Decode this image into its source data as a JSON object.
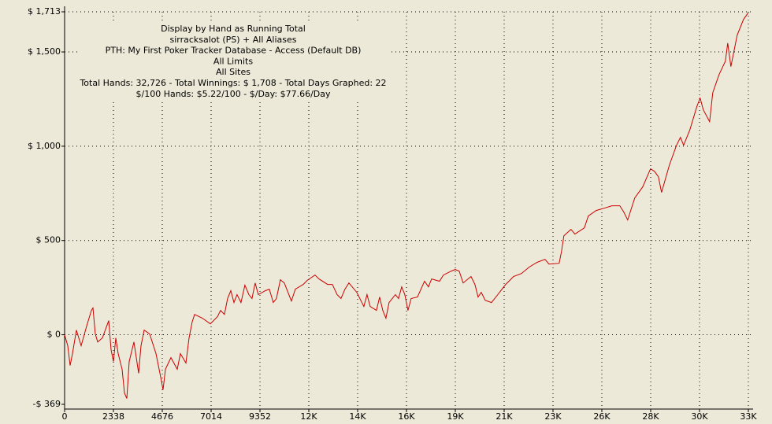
{
  "chart_data": {
    "type": "line",
    "title_lines": [
      "Display by Hand as Running Total",
      "sirracksalot (PS) + All Aliases",
      "PTH: My First Poker Tracker Database - Access (Default DB)",
      "All Limits",
      "All Sites",
      "Total Hands: 32,726 - Total Winnings: $ 1,708 - Total Days Graphed: 22",
      "$/100 Hands: $5.22/100 - $/Day: $77.66/Day"
    ],
    "color": "#cc0000",
    "grid": true,
    "xlim": [
      0,
      32732
    ],
    "ylim": [
      -369,
      1713
    ],
    "xticks": [
      0,
      2338,
      4676,
      7014,
      9352,
      {
        "value": 11690,
        "label": "12K"
      },
      {
        "value": 14028,
        "label": "14K"
      },
      {
        "value": 16366,
        "label": "16K"
      },
      {
        "value": 18704,
        "label": "19K"
      },
      {
        "value": 21042,
        "label": "21K"
      },
      {
        "value": 23380,
        "label": "23K"
      },
      {
        "value": 25718,
        "label": "26K"
      },
      {
        "value": 28056,
        "label": "28K"
      },
      {
        "value": 30394,
        "label": "30K"
      },
      {
        "value": 32732,
        "label": "33K"
      }
    ],
    "yticks": [
      {
        "value": -369,
        "label": "-$ 369"
      },
      {
        "value": 0,
        "label": "$ 0"
      },
      {
        "value": 500,
        "label": "$ 500"
      },
      {
        "value": 1000,
        "label": "$ 1,000"
      },
      {
        "value": 1500,
        "label": "$ 1,500"
      },
      {
        "value": 1713,
        "label": "$ 1,713"
      }
    ],
    "x": [
      0,
      151,
      264,
      377,
      566,
      792,
      1056,
      1282,
      1357,
      1470,
      1583,
      1810,
      2111,
      2224,
      2337,
      2451,
      2564,
      2752,
      2865,
      2978,
      3091,
      3318,
      3544,
      3657,
      3808,
      4072,
      4373,
      4599,
      4713,
      4826,
      5090,
      5391,
      5542,
      5806,
      5957,
      6107,
      6221,
      6598,
      6975,
      7314,
      7465,
      7653,
      7804,
      7955,
      8106,
      8256,
      8445,
      8633,
      8822,
      8973,
      9123,
      9274,
      9614,
      9802,
      9991,
      10141,
      10330,
      10519,
      10858,
      11046,
      11423,
      11612,
      11989,
      12177,
      12592,
      12818,
      13044,
      13233,
      13421,
      13610,
      13987,
      14175,
      14326,
      14477,
      14628,
      14929,
      15080,
      15231,
      15382,
      15532,
      15834,
      15985,
      16136,
      16286,
      16437,
      16588,
      16890,
      17229,
      17417,
      17568,
      17945,
      18134,
      18511,
      18699,
      18888,
      19076,
      19453,
      19642,
      19793,
      19943,
      20132,
      20433,
      20735,
      21112,
      21489,
      21866,
      22243,
      22620,
      22997,
      23186,
      23676,
      23789,
      23902,
      24241,
      24430,
      24882,
      25071,
      25448,
      25825,
      26202,
      26579,
      26767,
      26956,
      27295,
      27672,
      28049,
      28238,
      28426,
      28577,
      28954,
      29293,
      29481,
      29632,
      29934,
      30273,
      30424,
      30574,
      30876,
      31027,
      31329,
      31630,
      31743,
      31894,
      32196,
      32497,
      32726
    ],
    "values": [
      0,
      -58,
      -163,
      -100,
      25,
      -58,
      46,
      129,
      142,
      4,
      -38,
      -17,
      75,
      -79,
      -142,
      -17,
      -100,
      -183,
      -309,
      -338,
      -142,
      -38,
      -204,
      -58,
      25,
      4,
      -100,
      -225,
      -292,
      -183,
      -121,
      -183,
      -100,
      -150,
      -17,
      67,
      108,
      88,
      58,
      96,
      129,
      108,
      192,
      234,
      171,
      213,
      171,
      263,
      213,
      192,
      275,
      213,
      234,
      242,
      171,
      192,
      292,
      275,
      179,
      242,
      267,
      288,
      317,
      296,
      267,
      267,
      213,
      192,
      242,
      275,
      225,
      183,
      150,
      213,
      150,
      129,
      200,
      129,
      88,
      171,
      213,
      192,
      254,
      213,
      129,
      192,
      200,
      284,
      254,
      296,
      284,
      317,
      338,
      346,
      338,
      275,
      309,
      267,
      200,
      225,
      183,
      171,
      213,
      267,
      309,
      325,
      359,
      384,
      400,
      375,
      379,
      442,
      525,
      559,
      534,
      567,
      630,
      659,
      671,
      684,
      684,
      651,
      609,
      726,
      784,
      880,
      867,
      838,
      755,
      901,
      1005,
      1047,
      1005,
      1088,
      1213,
      1255,
      1193,
      1130,
      1284,
      1380,
      1451,
      1547,
      1422,
      1589,
      1672,
      1708
    ]
  }
}
